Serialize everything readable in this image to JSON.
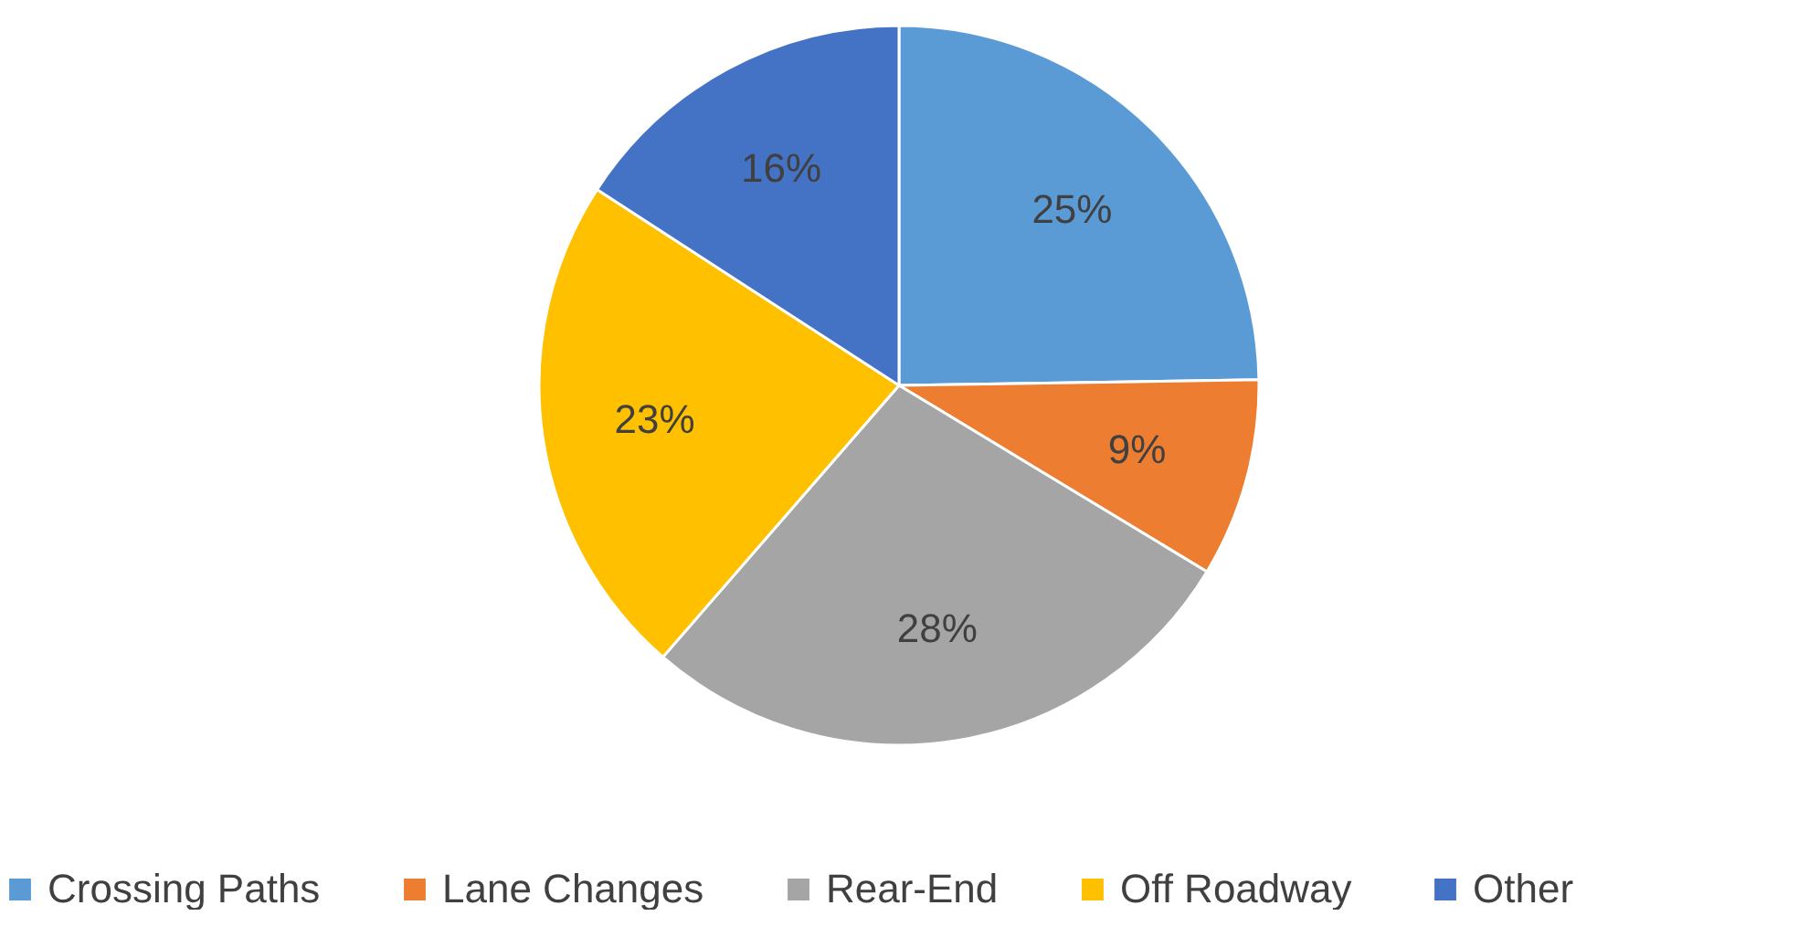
{
  "chart_data": {
    "type": "pie",
    "categories": [
      "Crossing Paths",
      "Lane Changes",
      "Rear-End",
      "Off Roadway",
      "Other"
    ],
    "values": [
      25,
      9,
      28,
      23,
      16
    ],
    "colors": [
      "#5b9bd5",
      "#ed7d31",
      "#a5a5a5",
      "#ffc000",
      "#4472c4"
    ],
    "value_labels": [
      "25%",
      "9%",
      "28%",
      "23%",
      "16%"
    ],
    "legend": "bottom"
  }
}
